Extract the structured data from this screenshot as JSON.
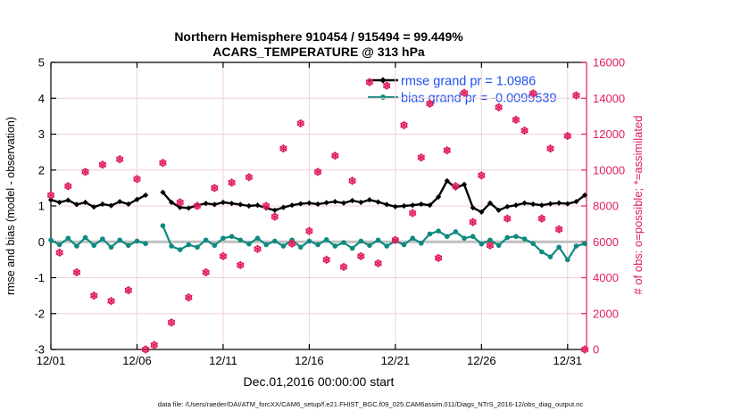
{
  "title": {
    "line1": "Northern Hemisphere 910454 / 915494 = 99.449%",
    "line2": "ACARS_TEMPERATURE @ 313 hPa"
  },
  "legend": {
    "rmse_label": "rmse grand pr = 1.0986",
    "bias_label": "bias grand pr = -0.0099539"
  },
  "axes": {
    "left": {
      "label": "rmse and bias (model - observation)",
      "range": [
        -3,
        5
      ],
      "ticks": [
        5,
        4,
        3,
        2,
        1,
        0,
        -1,
        -2,
        -3
      ],
      "tick_labels": [
        "5",
        "4",
        "3",
        "2",
        "1",
        "0",
        "-1",
        "-2",
        "-3"
      ]
    },
    "right": {
      "label": "# of obs: o=possible; *=assimilated",
      "range": [
        0,
        16000
      ],
      "ticks": [
        0,
        2000,
        4000,
        6000,
        8000,
        10000,
        12000,
        14000,
        16000
      ],
      "tick_labels": [
        "0",
        "2000",
        "4000",
        "6000",
        "8000",
        "10000",
        "12000",
        "14000",
        "16000"
      ]
    },
    "x": {
      "label": "Dec.01,2016 00:00:00 start",
      "range": [
        1,
        32.1
      ],
      "tick_days": [
        1,
        6,
        11,
        16,
        21,
        26,
        31
      ],
      "tick_labels": [
        "12/01",
        "12/06",
        "12/11",
        "12/16",
        "12/21",
        "12/26",
        "12/31"
      ],
      "grid_days": [
        6,
        11,
        16,
        21,
        26,
        31
      ]
    }
  },
  "footer": {
    "text": "data file: /Users/raeder/DAI/ATM_forcXX/CAM6_setup/f.e21.FHIST_BGC.f09_025.CAM6assim.011/Diags_NTrS_2016-12/obs_diag_output.nc"
  },
  "colors": {
    "rmse": "#000000",
    "bias": "#0e8a80",
    "obs": "#e01e5a",
    "legend_text": "#1e50f0",
    "grid": "#f2cfd6",
    "zero_line": "#c0c0c0",
    "axis_black": "#000000"
  },
  "chart_data": {
    "type": "line+scatter",
    "title": "Northern Hemisphere 910454 / 915494 = 99.449% — ACARS_TEMPERATURE @ 313 hPa",
    "x_unit": "day of Dec 2016, 12-hourly bins",
    "grid": true,
    "legend_position": "top-right-inside",
    "x_days": [
      1.0,
      1.5,
      2.0,
      2.5,
      3.0,
      3.5,
      4.0,
      4.5,
      5.0,
      5.5,
      6.0,
      6.5,
      7.0,
      7.5,
      8.0,
      8.5,
      9.0,
      9.5,
      10.0,
      10.5,
      11.0,
      11.5,
      12.0,
      12.5,
      13.0,
      13.5,
      14.0,
      14.5,
      15.0,
      15.5,
      16.0,
      16.5,
      17.0,
      17.5,
      18.0,
      18.5,
      19.0,
      19.5,
      20.0,
      20.5,
      21.0,
      21.5,
      22.0,
      22.5,
      23.0,
      23.5,
      24.0,
      24.5,
      25.0,
      25.5,
      26.0,
      26.5,
      27.0,
      27.5,
      28.0,
      28.5,
      29.0,
      29.5,
      30.0,
      30.5,
      31.0,
      31.5,
      32.0
    ],
    "series": [
      {
        "name": "rmse",
        "axis": "left",
        "grand_value": 1.0986,
        "color_key": "rmse",
        "marker": "diamond",
        "values": [
          1.17,
          1.1,
          1.16,
          1.04,
          1.1,
          0.97,
          1.05,
          1.01,
          1.12,
          1.05,
          1.18,
          1.3,
          null,
          1.38,
          1.1,
          0.96,
          0.94,
          1.02,
          1.07,
          1.04,
          1.1,
          1.07,
          1.04,
          1.0,
          1.02,
          0.94,
          0.88,
          0.96,
          1.02,
          1.06,
          1.08,
          1.05,
          1.09,
          1.12,
          1.08,
          1.15,
          1.1,
          1.17,
          1.11,
          1.04,
          0.98,
          1.0,
          1.02,
          1.05,
          1.02,
          1.25,
          1.7,
          1.5,
          1.6,
          0.95,
          0.83,
          1.08,
          0.88,
          0.98,
          1.02,
          1.08,
          1.05,
          1.02,
          1.06,
          1.08,
          1.06,
          1.12,
          1.3
        ]
      },
      {
        "name": "bias",
        "axis": "left",
        "grand_value": -0.0099539,
        "color_key": "bias",
        "marker": "circle",
        "values": [
          0.05,
          -0.08,
          0.1,
          -0.12,
          0.12,
          -0.1,
          0.08,
          -0.15,
          0.05,
          -0.1,
          0.02,
          -0.05,
          null,
          0.45,
          -0.12,
          -0.22,
          -0.08,
          -0.15,
          0.05,
          -0.1,
          0.1,
          0.15,
          0.05,
          -0.06,
          0.1,
          -0.08,
          0.02,
          -0.12,
          0.05,
          -0.15,
          0.02,
          -0.08,
          0.06,
          -0.12,
          -0.02,
          -0.18,
          0.02,
          -0.1,
          0.05,
          -0.12,
          0.02,
          -0.08,
          0.1,
          -0.04,
          0.22,
          0.3,
          0.15,
          0.28,
          0.1,
          0.15,
          -0.06,
          0.05,
          -0.1,
          0.12,
          0.15,
          0.08,
          -0.05,
          -0.28,
          -0.42,
          -0.15,
          -0.5,
          -0.12,
          -0.05
        ]
      },
      {
        "name": "possible_obs",
        "axis": "right",
        "color_key": "obs",
        "marker": "circle-open",
        "values": [
          8600,
          5400,
          9100,
          4300,
          9900,
          3000,
          10300,
          2700,
          10600,
          3300,
          9500,
          0,
          250,
          10400,
          1500,
          8200,
          2900,
          8000,
          4300,
          9000,
          5200,
          9300,
          4700,
          9600,
          5600,
          8000,
          7400,
          11200,
          5900,
          12600,
          6600,
          9900,
          5000,
          10800,
          4600,
          9400,
          5200,
          14900,
          4800,
          14700,
          6100,
          12500,
          7600,
          10700,
          13700,
          5100,
          11100,
          9100,
          14300,
          7100,
          9700,
          5800,
          13500,
          7300,
          12800,
          12200,
          14270,
          7300,
          11200,
          6700,
          11900,
          14160,
          0
        ]
      },
      {
        "name": "assimilated_obs",
        "axis": "right",
        "color_key": "obs",
        "marker": "asterisk",
        "note": "assimilated fraction = 99.449%; markers visually coincide with possible_obs",
        "values": [
          8600,
          5400,
          9100,
          4300,
          9900,
          3000,
          10300,
          2700,
          10600,
          3300,
          9500,
          0,
          250,
          10400,
          1500,
          8200,
          2900,
          8000,
          4300,
          9000,
          5200,
          9300,
          4700,
          9600,
          5600,
          8000,
          7400,
          11200,
          5900,
          12600,
          6600,
          9900,
          5000,
          10800,
          4600,
          9400,
          5200,
          14900,
          4800,
          14700,
          6100,
          12500,
          7600,
          10700,
          13700,
          5100,
          11100,
          9100,
          14300,
          7100,
          9700,
          5800,
          13500,
          7300,
          12800,
          12200,
          14270,
          7300,
          11200,
          6700,
          11900,
          14160,
          0
        ]
      }
    ]
  }
}
